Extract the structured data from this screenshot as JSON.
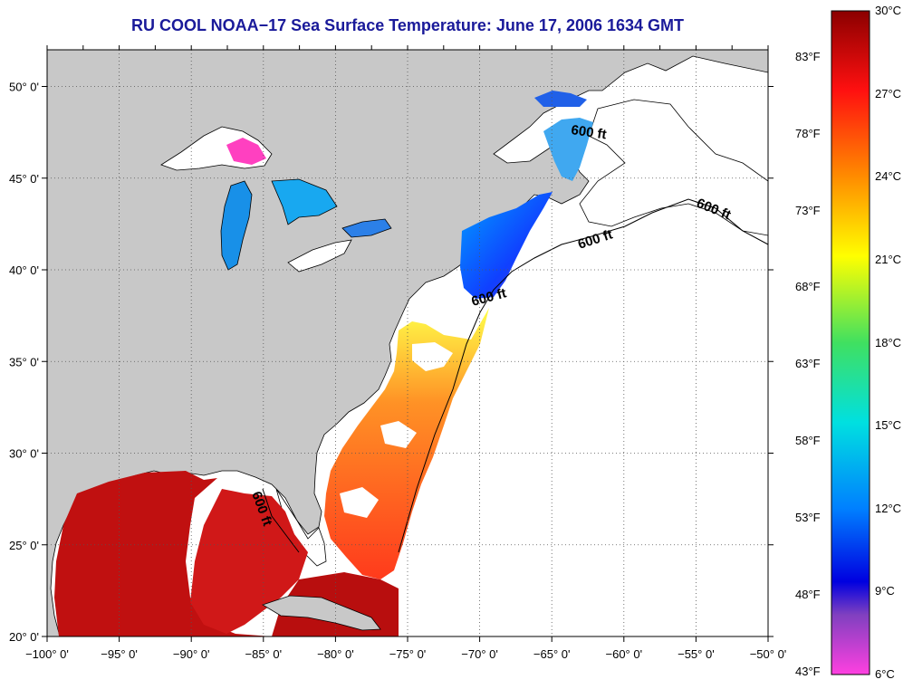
{
  "title": "RU COOL  NOAA−17  Sea Surface Temperature:  June 17, 2006 1634 GMT",
  "map": {
    "lat_range": [
      20,
      52
    ],
    "lon_range": [
      -100,
      -50
    ],
    "lat_ticks": [
      {
        "value": 50,
        "label": "50° 0'"
      },
      {
        "value": 45,
        "label": "45° 0'"
      },
      {
        "value": 40,
        "label": "40° 0'"
      },
      {
        "value": 35,
        "label": "35° 0'"
      },
      {
        "value": 30,
        "label": "30° 0'"
      },
      {
        "value": 25,
        "label": "25° 0'"
      },
      {
        "value": 20,
        "label": "20° 0'"
      }
    ],
    "lon_ticks": [
      {
        "value": -100,
        "label": "−100° 0'"
      },
      {
        "value": -95,
        "label": "−95° 0'"
      },
      {
        "value": -90,
        "label": "−90° 0'"
      },
      {
        "value": -85,
        "label": "−85° 0'"
      },
      {
        "value": -80,
        "label": "−80° 0'"
      },
      {
        "value": -75,
        "label": "−75° 0'"
      },
      {
        "value": -70,
        "label": "−70° 0'"
      },
      {
        "value": -65,
        "label": "−65° 0'"
      },
      {
        "value": -60,
        "label": "−60° 0'"
      },
      {
        "value": -55,
        "label": "−55° 0'"
      },
      {
        "value": -50,
        "label": "−50° 0'"
      }
    ],
    "contour_label": "600 ft",
    "colors": {
      "land": "#c8c8c8",
      "ocean": "#ffffff",
      "grid": "#555555"
    }
  },
  "colorbar": {
    "range_celsius": [
      6,
      30
    ],
    "celsius_labels": [
      "30°C",
      "27°C",
      "24°C",
      "21°C",
      "18°C",
      "15°C",
      "12°C",
      "9°C",
      "6°C"
    ],
    "fahrenheit_labels": [
      "83°F",
      "78°F",
      "73°F",
      "68°F",
      "63°F",
      "58°F",
      "53°F",
      "48°F",
      "43°F"
    ],
    "stops": [
      "#8b0000",
      "#ff1010",
      "#ff8c00",
      "#ffff00",
      "#40e060",
      "#00e0e0",
      "#0080ff",
      "#0000e0",
      "#8040c0",
      "#ff40e0"
    ]
  }
}
